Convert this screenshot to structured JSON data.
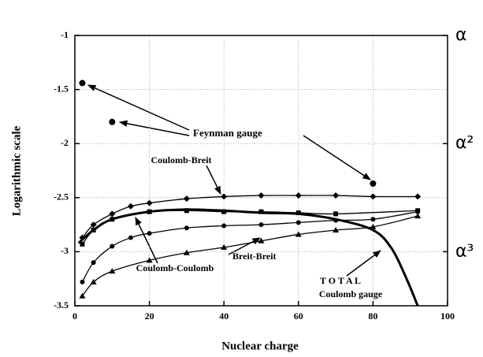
{
  "chart_data": {
    "type": "line",
    "xlabel": "Nuclear charge",
    "ylabel": "Logarithmic scale",
    "xlim": [
      0,
      100
    ],
    "xticks": [
      0,
      20,
      40,
      60,
      80,
      100
    ],
    "ylim": [
      -3.5,
      -1
    ],
    "yticks": [
      -1,
      -1.5,
      -2,
      -2.5,
      -3,
      -3.5
    ],
    "y2lim": [
      -3.5,
      -1
    ],
    "y2ticks": [
      {
        "value": -1,
        "label": "α"
      },
      {
        "value": -2,
        "label": "α²"
      },
      {
        "value": -3,
        "label": "α³"
      }
    ],
    "grid": true,
    "series": [
      {
        "name": "Coulomb-Breit",
        "color": "#000000",
        "marker": "diamond",
        "x": [
          2,
          5,
          10,
          15,
          20,
          30,
          40,
          50,
          60,
          70,
          80,
          92
        ],
        "values": [
          -2.87,
          -2.75,
          -2.65,
          -2.58,
          -2.55,
          -2.51,
          -2.49,
          -2.48,
          -2.48,
          -2.48,
          -2.49,
          -2.49
        ]
      },
      {
        "name": "Coulomb-Coulomb",
        "color": "#000000",
        "marker": "square",
        "x": [
          2,
          5,
          10,
          20,
          30,
          40,
          50,
          60,
          70,
          92
        ],
        "values": [
          -2.93,
          -2.8,
          -2.7,
          -2.63,
          -2.62,
          -2.63,
          -2.63,
          -2.64,
          -2.65,
          -2.62
        ]
      },
      {
        "color": "#000000",
        "marker": "circle",
        "x": [
          2,
          5,
          10,
          15,
          20,
          30,
          40,
          50,
          60,
          70,
          80,
          92
        ],
        "values": [
          -3.28,
          -3.1,
          -2.95,
          -2.87,
          -2.83,
          -2.78,
          -2.76,
          -2.75,
          -2.73,
          -2.71,
          -2.7,
          -2.63
        ]
      },
      {
        "name": "Breit-Breit",
        "color": "#000000",
        "marker": "triangle",
        "x": [
          2,
          5,
          10,
          20,
          30,
          40,
          50,
          60,
          70,
          80,
          92
        ],
        "values": [
          -3.41,
          -3.28,
          -3.18,
          -3.08,
          -3.01,
          -2.96,
          -2.9,
          -2.84,
          -2.8,
          -2.77,
          -2.67
        ]
      },
      {
        "name": "TOTAL Coulomb gauge",
        "color": "#000000",
        "marker": "none",
        "width": 3,
        "x": [
          1,
          5,
          10,
          20,
          30,
          40,
          50,
          60,
          70,
          80,
          85,
          89,
          92
        ],
        "values": [
          -2.92,
          -2.8,
          -2.7,
          -2.63,
          -2.61,
          -2.62,
          -2.64,
          -2.65,
          -2.7,
          -2.8,
          -2.97,
          -3.25,
          -3.5
        ]
      },
      {
        "name": "Feynman gauge",
        "color": "#000000",
        "marker": "dot",
        "x": [
          2,
          10,
          80
        ],
        "values": [
          -1.44,
          -1.8,
          -2.37
        ]
      }
    ],
    "annotations": [
      "Feynman gauge",
      "Coulomb-Breit",
      "Breit-Breit",
      "Coulomb-Coulomb",
      "T O T A L",
      "Coulomb gauge"
    ]
  }
}
